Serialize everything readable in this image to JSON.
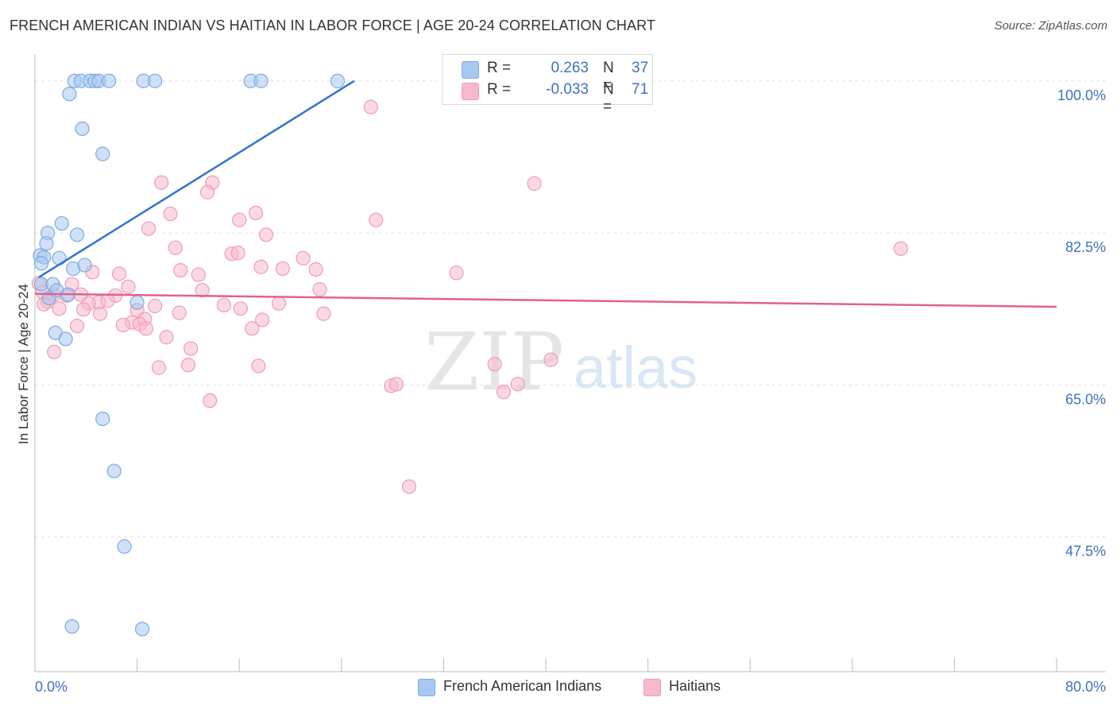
{
  "header": {
    "title": "FRENCH AMERICAN INDIAN VS HAITIAN IN LABOR FORCE | AGE 20-24 CORRELATION CHART",
    "source": "Source: ZipAtlas.com"
  },
  "watermark": {
    "zip": "ZIP",
    "atlas": "atlas"
  },
  "legend": {
    "rows": [
      {
        "r_label": "R =",
        "r_value": "0.263",
        "n_label": "N =",
        "n_value": "37",
        "color": "#a9c8f0"
      },
      {
        "r_label": "R =",
        "r_value": "-0.033",
        "n_label": "N =",
        "n_value": "71",
        "color": "#f7b9cc"
      }
    ]
  },
  "bottom_legend": {
    "items": [
      {
        "label": "French American Indians",
        "color": "#a9c8f0"
      },
      {
        "label": "Haitians",
        "color": "#f7b9cc"
      }
    ]
  },
  "chart_data": {
    "type": "scatter",
    "title": "FRENCH AMERICAN INDIAN VS HAITIAN IN LABOR FORCE | AGE 20-24 CORRELATION CHART",
    "xlabel": "",
    "ylabel": "In Labor Force | Age 20-24",
    "xlim": [
      0,
      80
    ],
    "ylim": [
      32,
      102
    ],
    "x_tick_labels": [
      "0.0%",
      "80.0%"
    ],
    "y_ticks": [
      47.5,
      65.0,
      82.5,
      100.0
    ],
    "y_tick_labels": [
      "47.5%",
      "65.0%",
      "82.5%",
      "100.0%"
    ],
    "grid": true,
    "series": [
      {
        "name": "French American Indians",
        "color": "#7aaae6",
        "fill": "#a9c8f0",
        "line_color": "#2f74cc",
        "trend": {
          "x0": 0.3,
          "y0": 77.4,
          "x1": 25.0,
          "y1": 100.0
        },
        "points": [
          [
            3.1,
            100.0
          ],
          [
            3.6,
            100.0
          ],
          [
            4.3,
            100.0
          ],
          [
            4.7,
            100.0
          ],
          [
            5.0,
            100.0
          ],
          [
            5.8,
            100.0
          ],
          [
            8.5,
            100.0
          ],
          [
            9.4,
            100.0
          ],
          [
            16.9,
            100.0
          ],
          [
            17.7,
            100.0
          ],
          [
            23.7,
            100.0
          ],
          [
            2.7,
            98.5
          ],
          [
            3.7,
            94.5
          ],
          [
            5.3,
            91.6
          ],
          [
            2.1,
            83.6
          ],
          [
            1.0,
            82.5
          ],
          [
            0.9,
            81.3
          ],
          [
            3.3,
            82.3
          ],
          [
            0.4,
            79.9
          ],
          [
            0.7,
            79.7
          ],
          [
            0.5,
            79.0
          ],
          [
            1.9,
            79.6
          ],
          [
            3.0,
            78.4
          ],
          [
            3.9,
            78.8
          ],
          [
            0.5,
            76.6
          ],
          [
            1.4,
            76.6
          ],
          [
            1.7,
            75.9
          ],
          [
            2.6,
            75.4
          ],
          [
            1.1,
            75.0
          ],
          [
            8.0,
            74.5
          ],
          [
            1.6,
            71.0
          ],
          [
            2.4,
            70.3
          ],
          [
            5.3,
            61.1
          ],
          [
            6.2,
            55.1
          ],
          [
            7.0,
            46.4
          ],
          [
            2.9,
            37.2
          ],
          [
            8.4,
            36.9
          ]
        ]
      },
      {
        "name": "Haitians",
        "color": "#f19ab5",
        "fill": "#f7b9cc",
        "line_color": "#e2618f",
        "trend": {
          "x0": 0.0,
          "y0": 75.5,
          "x1": 80.0,
          "y1": 74.0
        },
        "points": [
          [
            26.3,
            97.0
          ],
          [
            39.1,
            88.2
          ],
          [
            9.9,
            88.3
          ],
          [
            13.9,
            88.3
          ],
          [
            13.5,
            87.2
          ],
          [
            10.6,
            84.7
          ],
          [
            17.3,
            84.8
          ],
          [
            16.0,
            84.0
          ],
          [
            26.7,
            84.0
          ],
          [
            8.9,
            83.0
          ],
          [
            18.1,
            82.3
          ],
          [
            11.0,
            80.8
          ],
          [
            15.4,
            80.1
          ],
          [
            15.9,
            80.2
          ],
          [
            67.8,
            80.7
          ],
          [
            21.0,
            79.6
          ],
          [
            17.7,
            78.6
          ],
          [
            19.4,
            78.4
          ],
          [
            22.0,
            78.3
          ],
          [
            11.4,
            78.2
          ],
          [
            4.5,
            78.0
          ],
          [
            6.6,
            77.8
          ],
          [
            12.8,
            77.7
          ],
          [
            33.0,
            77.9
          ],
          [
            0.3,
            76.7
          ],
          [
            2.9,
            76.6
          ],
          [
            7.3,
            76.3
          ],
          [
            13.1,
            75.9
          ],
          [
            22.3,
            76.0
          ],
          [
            0.6,
            75.7
          ],
          [
            1.5,
            75.4
          ],
          [
            2.5,
            75.3
          ],
          [
            3.6,
            75.4
          ],
          [
            6.3,
            75.3
          ],
          [
            1.0,
            74.6
          ],
          [
            0.7,
            74.3
          ],
          [
            5.0,
            74.5
          ],
          [
            5.7,
            74.7
          ],
          [
            4.2,
            74.4
          ],
          [
            1.9,
            73.8
          ],
          [
            9.4,
            74.1
          ],
          [
            14.8,
            74.2
          ],
          [
            19.1,
            74.4
          ],
          [
            3.8,
            73.7
          ],
          [
            8.0,
            73.6
          ],
          [
            11.3,
            73.3
          ],
          [
            16.1,
            73.8
          ],
          [
            22.6,
            73.2
          ],
          [
            5.1,
            73.2
          ],
          [
            8.6,
            72.6
          ],
          [
            7.6,
            72.2
          ],
          [
            8.2,
            72.0
          ],
          [
            17.8,
            72.5
          ],
          [
            6.9,
            71.9
          ],
          [
            3.3,
            71.8
          ],
          [
            8.7,
            71.5
          ],
          [
            17.0,
            71.5
          ],
          [
            10.3,
            70.5
          ],
          [
            12.2,
            69.2
          ],
          [
            1.5,
            68.8
          ],
          [
            12.0,
            67.3
          ],
          [
            17.5,
            67.2
          ],
          [
            9.7,
            67.0
          ],
          [
            36.0,
            67.4
          ],
          [
            40.4,
            67.9
          ],
          [
            37.8,
            65.1
          ],
          [
            27.9,
            64.9
          ],
          [
            28.3,
            65.1
          ],
          [
            36.7,
            64.2
          ],
          [
            13.7,
            63.2
          ],
          [
            29.3,
            53.3
          ]
        ]
      }
    ]
  }
}
